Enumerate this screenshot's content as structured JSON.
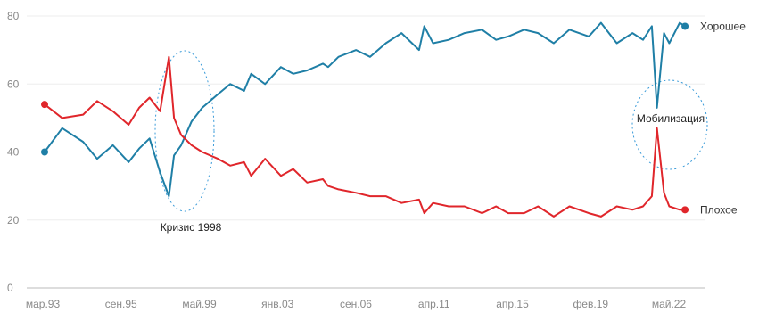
{
  "chart_data": {
    "type": "line",
    "title": "",
    "xlabel": "",
    "ylabel": "",
    "ylim": [
      0,
      80
    ],
    "y_ticks": [
      "0",
      "20",
      "40",
      "60",
      "80"
    ],
    "x_tick_labels": [
      "мар.93",
      "сен.95",
      "май.99",
      "янв.03",
      "сен.06",
      "апр.11",
      "апр.15",
      "фев.19",
      "май.22"
    ],
    "grid": "horizontal",
    "x": [
      "1993-03",
      "1994-01",
      "1995-01",
      "1995-09",
      "1996-06",
      "1997-03",
      "1997-09",
      "1998-03",
      "1998-09",
      "1999-02",
      "1999-05",
      "1999-09",
      "2000-03",
      "2000-09",
      "2001-06",
      "2002-01",
      "2002-09",
      "2003-01",
      "2003-09",
      "2004-06",
      "2005-01",
      "2005-09",
      "2006-06",
      "2006-09",
      "2007-03",
      "2008-01",
      "2008-09",
      "2009-06",
      "2010-03",
      "2011-01",
      "2011-04",
      "2011-09",
      "2012-06",
      "2013-03",
      "2014-01",
      "2014-09",
      "2015-04",
      "2016-01",
      "2016-09",
      "2017-06",
      "2018-03",
      "2019-02",
      "2019-09",
      "2020-06",
      "2021-03",
      "2021-09",
      "2022-02",
      "2022-05",
      "2022-09",
      "2022-12",
      "2023-06",
      "2023-09"
    ],
    "series": [
      {
        "name": "Хорошее",
        "color": "#1f7fa6",
        "values": [
          40,
          47,
          43,
          38,
          42,
          37,
          41,
          44,
          34,
          27,
          39,
          42,
          49,
          53,
          57,
          60,
          58,
          63,
          60,
          65,
          63,
          64,
          66,
          65,
          68,
          70,
          68,
          72,
          75,
          70,
          77,
          72,
          73,
          75,
          76,
          73,
          74,
          76,
          75,
          72,
          76,
          74,
          78,
          72,
          75,
          73,
          77,
          53,
          75,
          72,
          78,
          77
        ]
      },
      {
        "name": "Плохое",
        "color": "#e0262b",
        "values": [
          54,
          50,
          51,
          55,
          52,
          48,
          53,
          56,
          52,
          68,
          50,
          45,
          42,
          40,
          38,
          36,
          37,
          33,
          38,
          33,
          35,
          31,
          32,
          30,
          29,
          28,
          27,
          27,
          25,
          26,
          22,
          25,
          24,
          24,
          22,
          24,
          22,
          22,
          24,
          21,
          24,
          22,
          21,
          24,
          23,
          24,
          27,
          47,
          28,
          24,
          23,
          23
        ]
      }
    ],
    "annotations": [
      "Кризис 1998",
      "Мобилизация"
    ]
  }
}
